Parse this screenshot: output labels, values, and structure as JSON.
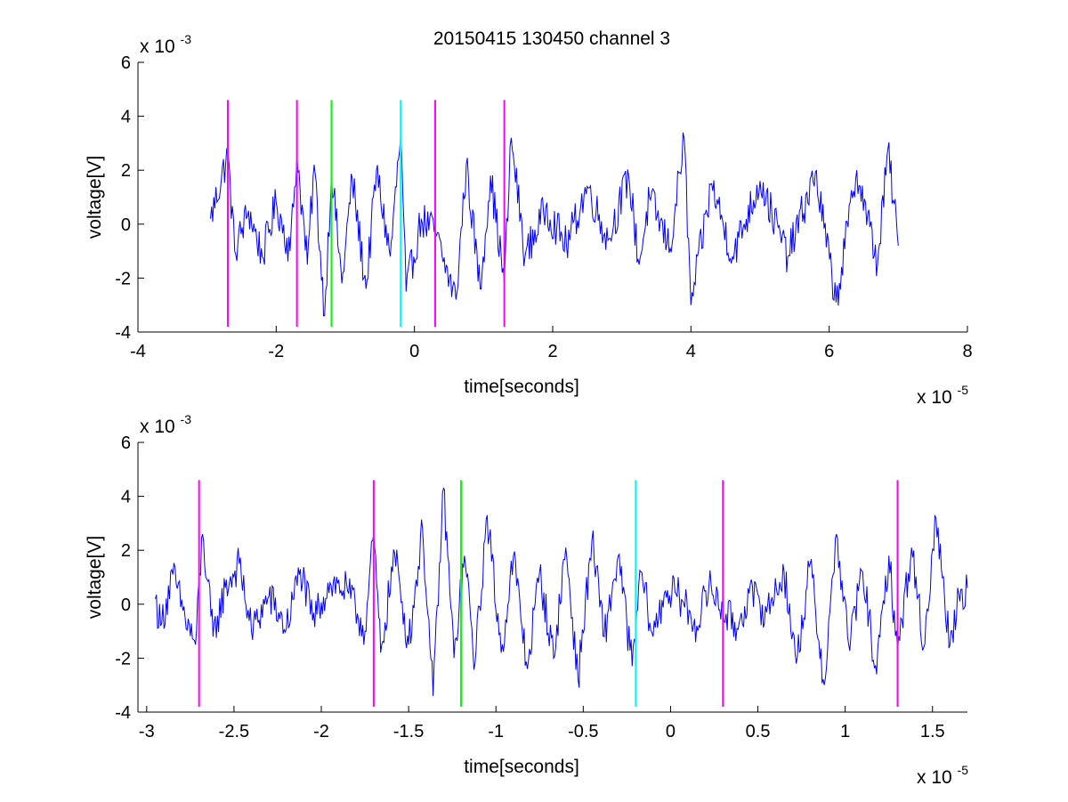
{
  "figure_title": "20150415 130450 channel 3",
  "chart_data": [
    {
      "type": "line",
      "title": "20150415 130450 channel 3",
      "xlabel": "time[seconds]",
      "ylabel": "voltage[V]",
      "x_scale_label": "x 10",
      "x_scale_exp": "-5",
      "y_scale_label": "x 10",
      "y_scale_exp": "-3",
      "xlim": [
        -4,
        8
      ],
      "ylim": [
        -4,
        6
      ],
      "xticks": [
        -4,
        -2,
        0,
        2,
        4,
        6,
        8
      ],
      "xtick_labels": [
        "-4",
        "-2",
        "0",
        "2",
        "4",
        "6",
        "8"
      ],
      "yticks": [
        -4,
        -2,
        0,
        2,
        4,
        6
      ],
      "ytick_labels": [
        "-4",
        "-2",
        "0",
        "2",
        "4",
        "6"
      ],
      "grid": false,
      "series": [
        {
          "color": "#0000ff",
          "x_range": [
            -2.95,
            7.0
          ],
          "y_range_approx": [
            -3.4,
            3.4
          ],
          "points": [
            [
              -2.95,
              0.2
            ],
            [
              -2.7,
              2.6
            ],
            [
              -2.6,
              -1.0
            ],
            [
              -2.4,
              0.5
            ],
            [
              -2.2,
              -1.2
            ],
            [
              -2.0,
              0.8
            ],
            [
              -1.8,
              -1.0
            ],
            [
              -1.7,
              2.6
            ],
            [
              -1.55,
              -1.5
            ],
            [
              -1.45,
              2.2
            ],
            [
              -1.3,
              -3.4
            ],
            [
              -1.2,
              2.0
            ],
            [
              -1.05,
              -2.2
            ],
            [
              -0.9,
              1.7
            ],
            [
              -0.7,
              -2.4
            ],
            [
              -0.55,
              2.0
            ],
            [
              -0.35,
              -1.2
            ],
            [
              -0.2,
              3.3
            ],
            [
              -0.12,
              -2.5
            ],
            [
              0.1,
              0.2
            ],
            [
              0.3,
              -0.3
            ],
            [
              0.4,
              -1.2
            ],
            [
              0.6,
              -2.8
            ],
            [
              0.75,
              2.2
            ],
            [
              0.95,
              -2.4
            ],
            [
              1.1,
              1.8
            ],
            [
              1.3,
              -2.2
            ],
            [
              1.4,
              3.2
            ],
            [
              1.6,
              -1.2
            ],
            [
              1.9,
              0.6
            ],
            [
              2.2,
              -0.8
            ],
            [
              2.5,
              1.4
            ],
            [
              2.8,
              -0.6
            ],
            [
              3.1,
              1.8
            ],
            [
              3.25,
              -1.5
            ],
            [
              3.4,
              1.0
            ],
            [
              3.7,
              -0.9
            ],
            [
              3.9,
              3.2
            ],
            [
              4.0,
              -3.0
            ],
            [
              4.3,
              1.5
            ],
            [
              4.6,
              -1.2
            ],
            [
              5.0,
              1.6
            ],
            [
              5.4,
              -1.2
            ],
            [
              5.8,
              1.9
            ],
            [
              6.1,
              -2.9
            ],
            [
              6.4,
              2.0
            ],
            [
              6.7,
              -1.5
            ],
            [
              6.85,
              2.8
            ],
            [
              7.0,
              -0.8
            ]
          ]
        }
      ],
      "vlines": [
        {
          "x": -2.7,
          "color": "#ff00ff",
          "y_range": [
            -3.8,
            4.6
          ]
        },
        {
          "x": -1.7,
          "color": "#ff00ff",
          "y_range": [
            -3.8,
            4.6
          ]
        },
        {
          "x": -1.2,
          "color": "#00ff00",
          "y_range": [
            -3.8,
            4.6
          ]
        },
        {
          "x": -0.2,
          "color": "#00ffff",
          "y_range": [
            -3.8,
            4.6
          ]
        },
        {
          "x": 0.3,
          "color": "#ff00ff",
          "y_range": [
            -3.8,
            4.6
          ]
        },
        {
          "x": 1.3,
          "color": "#ff00ff",
          "y_range": [
            -3.8,
            4.6
          ]
        }
      ]
    },
    {
      "type": "line",
      "title": "",
      "xlabel": "time[seconds]",
      "ylabel": "voltage[V]",
      "x_scale_label": "x 10",
      "x_scale_exp": "-5",
      "y_scale_label": "x 10",
      "y_scale_exp": "-3",
      "xlim": [
        -3.05,
        1.7
      ],
      "ylim": [
        -4,
        6
      ],
      "xticks": [
        -3,
        -2.5,
        -2,
        -1.5,
        -1,
        -0.5,
        0,
        0.5,
        1,
        1.5
      ],
      "xtick_labels": [
        "-3",
        "-2.5",
        "-2",
        "-1.5",
        "-1",
        "-0.5",
        "0",
        "0.5",
        "1",
        "1.5"
      ],
      "yticks": [
        -4,
        -2,
        0,
        2,
        4,
        6
      ],
      "ytick_labels": [
        "-4",
        "-2",
        "0",
        "2",
        "4",
        "6"
      ],
      "grid": false,
      "series": [
        {
          "color": "#0000ff",
          "x_range": [
            -2.95,
            1.7
          ],
          "y_range_approx": [
            -3.4,
            4.3
          ],
          "points": [
            [
              -2.95,
              0.2
            ],
            [
              -2.92,
              -0.8
            ],
            [
              -2.85,
              1.1
            ],
            [
              -2.78,
              -0.5
            ],
            [
              -2.72,
              -1.5
            ],
            [
              -2.68,
              2.6
            ],
            [
              -2.62,
              -1.2
            ],
            [
              -2.55,
              0.6
            ],
            [
              -2.47,
              1.5
            ],
            [
              -2.4,
              -1.0
            ],
            [
              -2.3,
              0.3
            ],
            [
              -2.2,
              -0.9
            ],
            [
              -2.12,
              1.3
            ],
            [
              -2.05,
              -0.6
            ],
            [
              -1.95,
              0.8
            ],
            [
              -1.85,
              0.5
            ],
            [
              -1.75,
              -1.0
            ],
            [
              -1.7,
              2.6
            ],
            [
              -1.66,
              -1.8
            ],
            [
              -1.58,
              1.9
            ],
            [
              -1.5,
              -1.5
            ],
            [
              -1.42,
              2.8
            ],
            [
              -1.36,
              -3.4
            ],
            [
              -1.3,
              4.3
            ],
            [
              -1.24,
              -2.0
            ],
            [
              -1.18,
              1.8
            ],
            [
              -1.12,
              -2.2
            ],
            [
              -1.05,
              3.3
            ],
            [
              -0.97,
              -1.8
            ],
            [
              -0.9,
              1.8
            ],
            [
              -0.82,
              -2.4
            ],
            [
              -0.75,
              1.2
            ],
            [
              -0.67,
              -2.0
            ],
            [
              -0.6,
              2.1
            ],
            [
              -0.53,
              -2.8
            ],
            [
              -0.45,
              2.4
            ],
            [
              -0.38,
              -1.2
            ],
            [
              -0.3,
              1.8
            ],
            [
              -0.22,
              -2.3
            ],
            [
              -0.17,
              1.2
            ],
            [
              -0.1,
              -1.2
            ],
            [
              -0.03,
              0.5
            ],
            [
              0.05,
              0.3
            ],
            [
              0.15,
              -0.8
            ],
            [
              0.22,
              0.7
            ],
            [
              0.3,
              -0.2
            ],
            [
              0.38,
              -0.9
            ],
            [
              0.45,
              0.4
            ],
            [
              0.55,
              -0.3
            ],
            [
              0.65,
              1.2
            ],
            [
              0.72,
              -2.2
            ],
            [
              0.8,
              1.5
            ],
            [
              0.88,
              -3.0
            ],
            [
              0.95,
              2.6
            ],
            [
              1.02,
              -1.5
            ],
            [
              1.1,
              1.2
            ],
            [
              1.18,
              -2.6
            ],
            [
              1.25,
              1.8
            ],
            [
              1.3,
              -1.8
            ],
            [
              1.38,
              2.1
            ],
            [
              1.45,
              -1.6
            ],
            [
              1.52,
              3.2
            ],
            [
              1.6,
              -1.5
            ],
            [
              1.65,
              0.4
            ],
            [
              1.7,
              0.6
            ]
          ]
        }
      ],
      "vlines": [
        {
          "x": -2.7,
          "color": "#ff00ff",
          "y_range": [
            -3.8,
            4.6
          ]
        },
        {
          "x": -1.7,
          "color": "#ff00ff",
          "y_range": [
            -3.8,
            4.6
          ]
        },
        {
          "x": -1.2,
          "color": "#00ff00",
          "y_range": [
            -3.8,
            4.6
          ]
        },
        {
          "x": -0.2,
          "color": "#00ffff",
          "y_range": [
            -3.8,
            4.6
          ]
        },
        {
          "x": 0.3,
          "color": "#ff00ff",
          "y_range": [
            -3.8,
            4.6
          ]
        },
        {
          "x": 1.3,
          "color": "#ff00ff",
          "y_range": [
            -3.8,
            4.6
          ]
        }
      ]
    }
  ]
}
